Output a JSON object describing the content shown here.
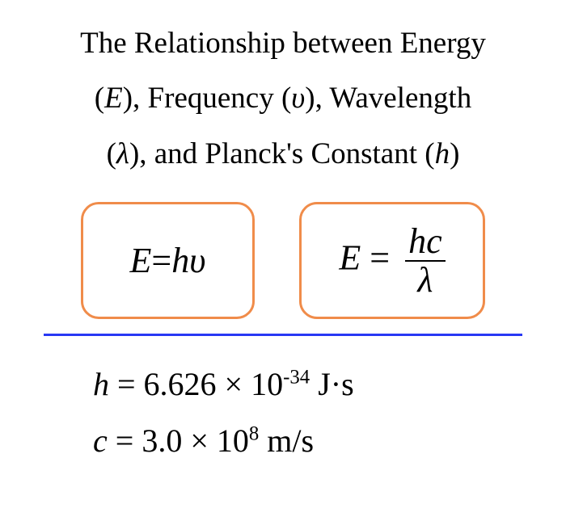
{
  "title": {
    "line1_pre": "The Relationship between Energy",
    "line2_pre": "(",
    "E": "E",
    "line2_mid": "), Frequency (",
    "nu": "υ",
    "line2_post": "), Wavelength",
    "line3_pre": "(",
    "lambda": "λ",
    "line3_mid": "), and Planck's Constant (",
    "h": "h",
    "line3_post": ")"
  },
  "equations": {
    "box_border_color": "#f08c4a",
    "eq1": {
      "E": "E",
      "eq": "=",
      "h": "h",
      "nu": "υ"
    },
    "eq2": {
      "E": "E",
      "eq": " = ",
      "num_h": "h",
      "num_c": "c",
      "den": "λ"
    }
  },
  "divider_color": "#2838f4",
  "constants": {
    "h_var": "h",
    "h_eq": " = 6.626 × 10",
    "h_exp": "-34",
    "h_unit": " J·s",
    "c_var": "c",
    "c_eq": " = 3.0 × 10",
    "c_exp": "8",
    "c_unit": " m/s"
  }
}
